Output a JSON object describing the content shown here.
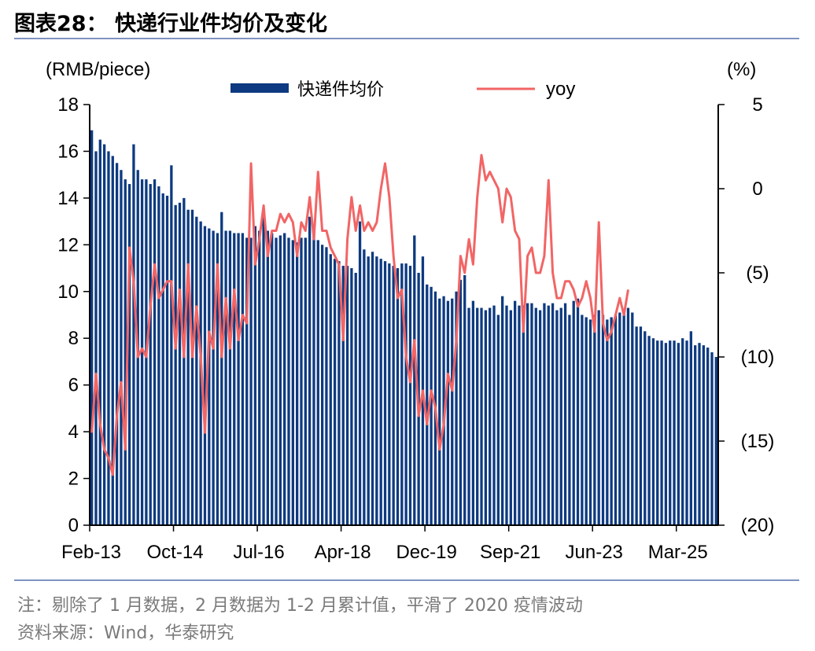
{
  "header": {
    "title": "图表28：  快递行业件均价及变化"
  },
  "footer": {
    "note": "注：剔除了 1 月数据，2 月数据为 1-2 月累计值，平滑了 2020 疫情波动",
    "source": "资料来源：Wind，华泰研究"
  },
  "chart_data": {
    "type": "bar+line",
    "left_axis_unit": "(RMB/piece)",
    "right_axis_unit": "(%)",
    "legend": [
      {
        "label": "快递件均价",
        "type": "bar",
        "color": "#0d3a80"
      },
      {
        "label": "yoy",
        "type": "line",
        "color": "#f26565"
      }
    ],
    "y_left": {
      "min": 0,
      "max": 18,
      "ticks": [
        "0",
        "2",
        "4",
        "6",
        "8",
        "10",
        "12",
        "14",
        "16",
        "18"
      ]
    },
    "y_right": {
      "min": -20,
      "max": 5,
      "ticks": [
        "5",
        "0",
        "(5)",
        "(10)",
        "(15)",
        "(20)"
      ],
      "tick_values": [
        5,
        0,
        -5,
        -10,
        -15,
        -20
      ]
    },
    "x_ticks": [
      "Feb-13",
      "Oct-14",
      "Jul-16",
      "Apr-18",
      "Dec-19",
      "Sep-21",
      "Jun-23",
      "Mar-25"
    ],
    "start_month": "Feb-13",
    "end_month": "Mar-25",
    "grid": false,
    "legend_position": "top",
    "price": [
      16.9,
      16.0,
      16.5,
      16.3,
      16.0,
      15.8,
      15.5,
      15.2,
      14.8,
      14.6,
      16.3,
      15.2,
      14.8,
      14.8,
      14.6,
      14.8,
      14.5,
      14.2,
      14.1,
      15.4,
      13.7,
      13.8,
      14.0,
      13.5,
      13.5,
      13.2,
      13.0,
      12.8,
      12.7,
      12.6,
      12.5,
      13.4,
      12.6,
      12.6,
      12.5,
      12.5,
      12.5,
      12.3,
      12.3,
      12.8,
      12.6,
      13.2,
      12.6,
      12.5,
      12.3,
      12.4,
      12.5,
      12.3,
      12.2,
      12.1,
      12.3,
      12.3,
      13.2,
      12.5,
      12.2,
      12.0,
      11.9,
      11.6,
      11.4,
      11.3,
      11.1,
      11.1,
      11.0,
      10.8,
      13.0,
      11.8,
      11.5,
      11.7,
      11.5,
      11.4,
      11.3,
      11.2,
      11.1,
      11.0,
      11.2,
      11.2,
      11.1,
      12.4,
      10.8,
      11.5,
      10.3,
      10.2,
      10.0,
      9.7,
      9.8,
      9.6,
      9.7,
      10.0,
      10.5,
      10.7,
      9.3,
      9.6,
      9.3,
      9.3,
      9.2,
      9.3,
      9.4,
      9.0,
      9.8,
      9.4,
      9.2,
      9.6,
      9.4,
      9.4,
      9.5,
      9.5,
      9.3,
      9.2,
      9.5,
      9.4,
      9.5,
      9.2,
      9.3,
      9.5,
      9.0,
      9.6,
      9.7,
      9.0,
      8.9,
      8.8,
      9.0,
      9.2,
      9.0,
      8.8,
      8.9,
      9.0,
      9.1,
      9.2,
      9.3,
      9.1,
      8.5,
      8.5,
      8.3,
      8.1,
      8.0,
      7.9,
      7.9,
      7.8,
      7.9,
      7.9,
      7.8,
      8.0,
      7.9,
      8.3,
      7.7,
      7.8,
      7.7,
      7.6,
      7.4,
      7.2
    ],
    "yoy": [
      [
        0,
        -14.5
      ],
      [
        1,
        -11.0
      ],
      [
        2,
        -14.0
      ],
      [
        3,
        -15.5
      ],
      [
        4,
        -16.0
      ],
      [
        5,
        -17.0
      ],
      [
        6,
        -13.5
      ],
      [
        7,
        -11.5
      ],
      [
        8,
        -15.5
      ],
      [
        9,
        -3.5
      ],
      [
        10,
        -5.5
      ],
      [
        11,
        -10.0
      ],
      [
        12,
        -9.5
      ],
      [
        13,
        -10.0
      ],
      [
        14,
        -7.0
      ],
      [
        15,
        -4.5
      ],
      [
        16,
        -6.5
      ],
      [
        17,
        -6.0
      ],
      [
        18,
        -5.5
      ],
      [
        19,
        -5.5
      ],
      [
        20,
        -9.5
      ],
      [
        21,
        -6.0
      ],
      [
        22,
        -10.0
      ],
      [
        23,
        -4.5
      ],
      [
        24,
        -10.0
      ],
      [
        25,
        -7.0
      ],
      [
        26,
        -10.0
      ],
      [
        27,
        -14.5
      ],
      [
        28,
        -8.5
      ],
      [
        29,
        -9.5
      ],
      [
        30,
        -4.5
      ],
      [
        31,
        -10.0
      ],
      [
        32,
        -6.5
      ],
      [
        33,
        -9.5
      ],
      [
        34,
        -6.0
      ],
      [
        35,
        -9.0
      ],
      [
        36,
        -7.5
      ],
      [
        37,
        -8.0
      ],
      [
        38,
        1.5
      ],
      [
        39,
        -4.5
      ],
      [
        40,
        -3.0
      ],
      [
        41,
        -1.0
      ],
      [
        42,
        -4.0
      ],
      [
        43,
        -2.5
      ],
      [
        44,
        -2.5
      ],
      [
        45,
        -1.5
      ],
      [
        46,
        -2.0
      ],
      [
        47,
        -1.5
      ],
      [
        48,
        -2.0
      ],
      [
        49,
        -4.0
      ],
      [
        50,
        -2.0
      ],
      [
        51,
        -2.5
      ],
      [
        52,
        -0.5
      ],
      [
        53,
        -3.0
      ],
      [
        54,
        1.0
      ],
      [
        55,
        -2.5
      ],
      [
        56,
        -2.5
      ],
      [
        57,
        -3.5
      ],
      [
        58,
        -4.0
      ],
      [
        59,
        -4.5
      ],
      [
        60,
        -9.0
      ],
      [
        61,
        -3.0
      ],
      [
        62,
        -0.5
      ],
      [
        63,
        -2.5
      ],
      [
        64,
        -1.0
      ],
      [
        65,
        -2.5
      ],
      [
        66,
        -2.0
      ],
      [
        67,
        -2.5
      ],
      [
        68,
        -2.0
      ],
      [
        69,
        0.0
      ],
      [
        70,
        1.5
      ],
      [
        71,
        -0.5
      ],
      [
        72,
        -4.0
      ],
      [
        73,
        -6.5
      ],
      [
        74,
        -6.0
      ],
      [
        75,
        -10.0
      ],
      [
        76,
        -11.5
      ],
      [
        77,
        -9.0
      ],
      [
        78,
        -13.5
      ],
      [
        79,
        -12.0
      ],
      [
        80,
        -14.0
      ],
      [
        81,
        -12.0
      ],
      [
        82,
        -13.0
      ],
      [
        83,
        -15.5
      ],
      [
        84,
        -14.0
      ],
      [
        85,
        -11.0
      ],
      [
        86,
        -12.0
      ],
      [
        87,
        -9.0
      ],
      [
        88,
        -4.0
      ],
      [
        89,
        -5.0
      ],
      [
        90,
        -3.0
      ],
      [
        91,
        -4.5
      ],
      [
        92,
        -0.5
      ],
      [
        93,
        2.0
      ],
      [
        94,
        0.5
      ],
      [
        95,
        1.0
      ],
      [
        96,
        0.5
      ],
      [
        97,
        0.0
      ],
      [
        98,
        -2.0
      ],
      [
        99,
        0.0
      ],
      [
        100,
        -0.5
      ],
      [
        101,
        -2.5
      ],
      [
        102,
        -3.0
      ],
      [
        103,
        -8.5
      ],
      [
        104,
        -4.0
      ],
      [
        105,
        -3.5
      ],
      [
        106,
        -5.0
      ],
      [
        107,
        -5.0
      ],
      [
        108,
        -4.0
      ],
      [
        109,
        0.5
      ],
      [
        110,
        -5.0
      ],
      [
        111,
        -6.5
      ],
      [
        112,
        -6.5
      ],
      [
        113,
        -5.5
      ],
      [
        114,
        -5.5
      ],
      [
        115,
        -6.0
      ],
      [
        116,
        -7.0
      ],
      [
        117,
        -6.5
      ],
      [
        118,
        -5.5
      ],
      [
        119,
        -6.5
      ],
      [
        120,
        -8.5
      ],
      [
        121,
        -2.0
      ],
      [
        122,
        -8.0
      ],
      [
        123,
        -9.0
      ],
      [
        124,
        -8.5
      ],
      [
        125,
        -7.5
      ],
      [
        126,
        -6.5
      ],
      [
        127,
        -7.5
      ],
      [
        128,
        -6.0
      ]
    ]
  }
}
